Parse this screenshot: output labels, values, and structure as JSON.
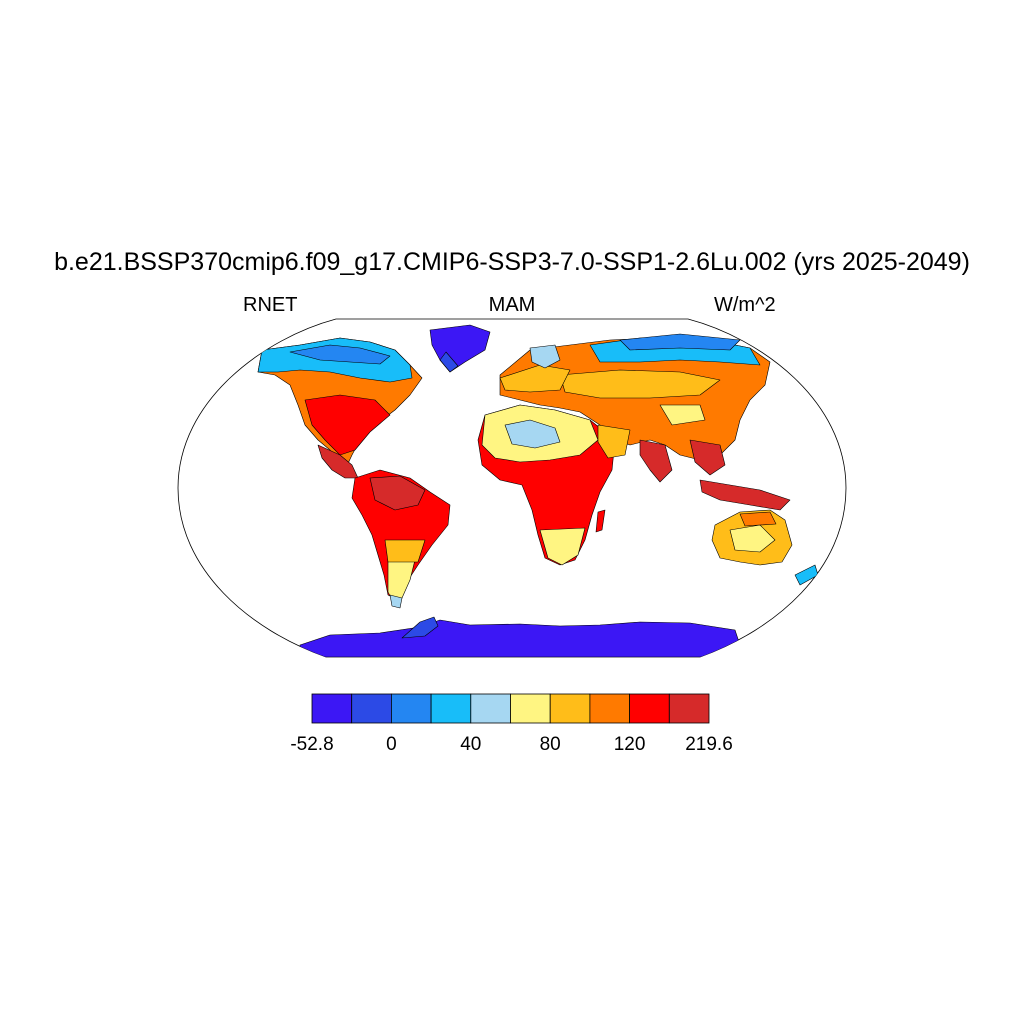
{
  "title": "b.e21.BSSP370cmip6.f09_g17.CMIP6-SSP3-7.0-SSP1-2.6Lu.002 (yrs 2025-2049)",
  "left_label": "RNET",
  "center_label": "MAM",
  "right_label": "W/m^2",
  "projection": "Robinson",
  "variable": "RNET",
  "season": "MAM",
  "units": "W/m^2",
  "colorbar": {
    "colors": [
      "#3c17f5",
      "#2c4ae6",
      "#2486f2",
      "#18bdf9",
      "#a6d7f2",
      "#fff582",
      "#ffbd19",
      "#ff7a00",
      "#ff0000",
      "#d62a2a"
    ],
    "labels": [
      {
        "text": "-52.8",
        "boundary": 0
      },
      {
        "text": "0",
        "boundary": 2
      },
      {
        "text": "40",
        "boundary": 4
      },
      {
        "text": "80",
        "boundary": 6
      },
      {
        "text": "120",
        "boundary": 8
      },
      {
        "text": "219.6",
        "boundary": 10
      }
    ]
  }
}
